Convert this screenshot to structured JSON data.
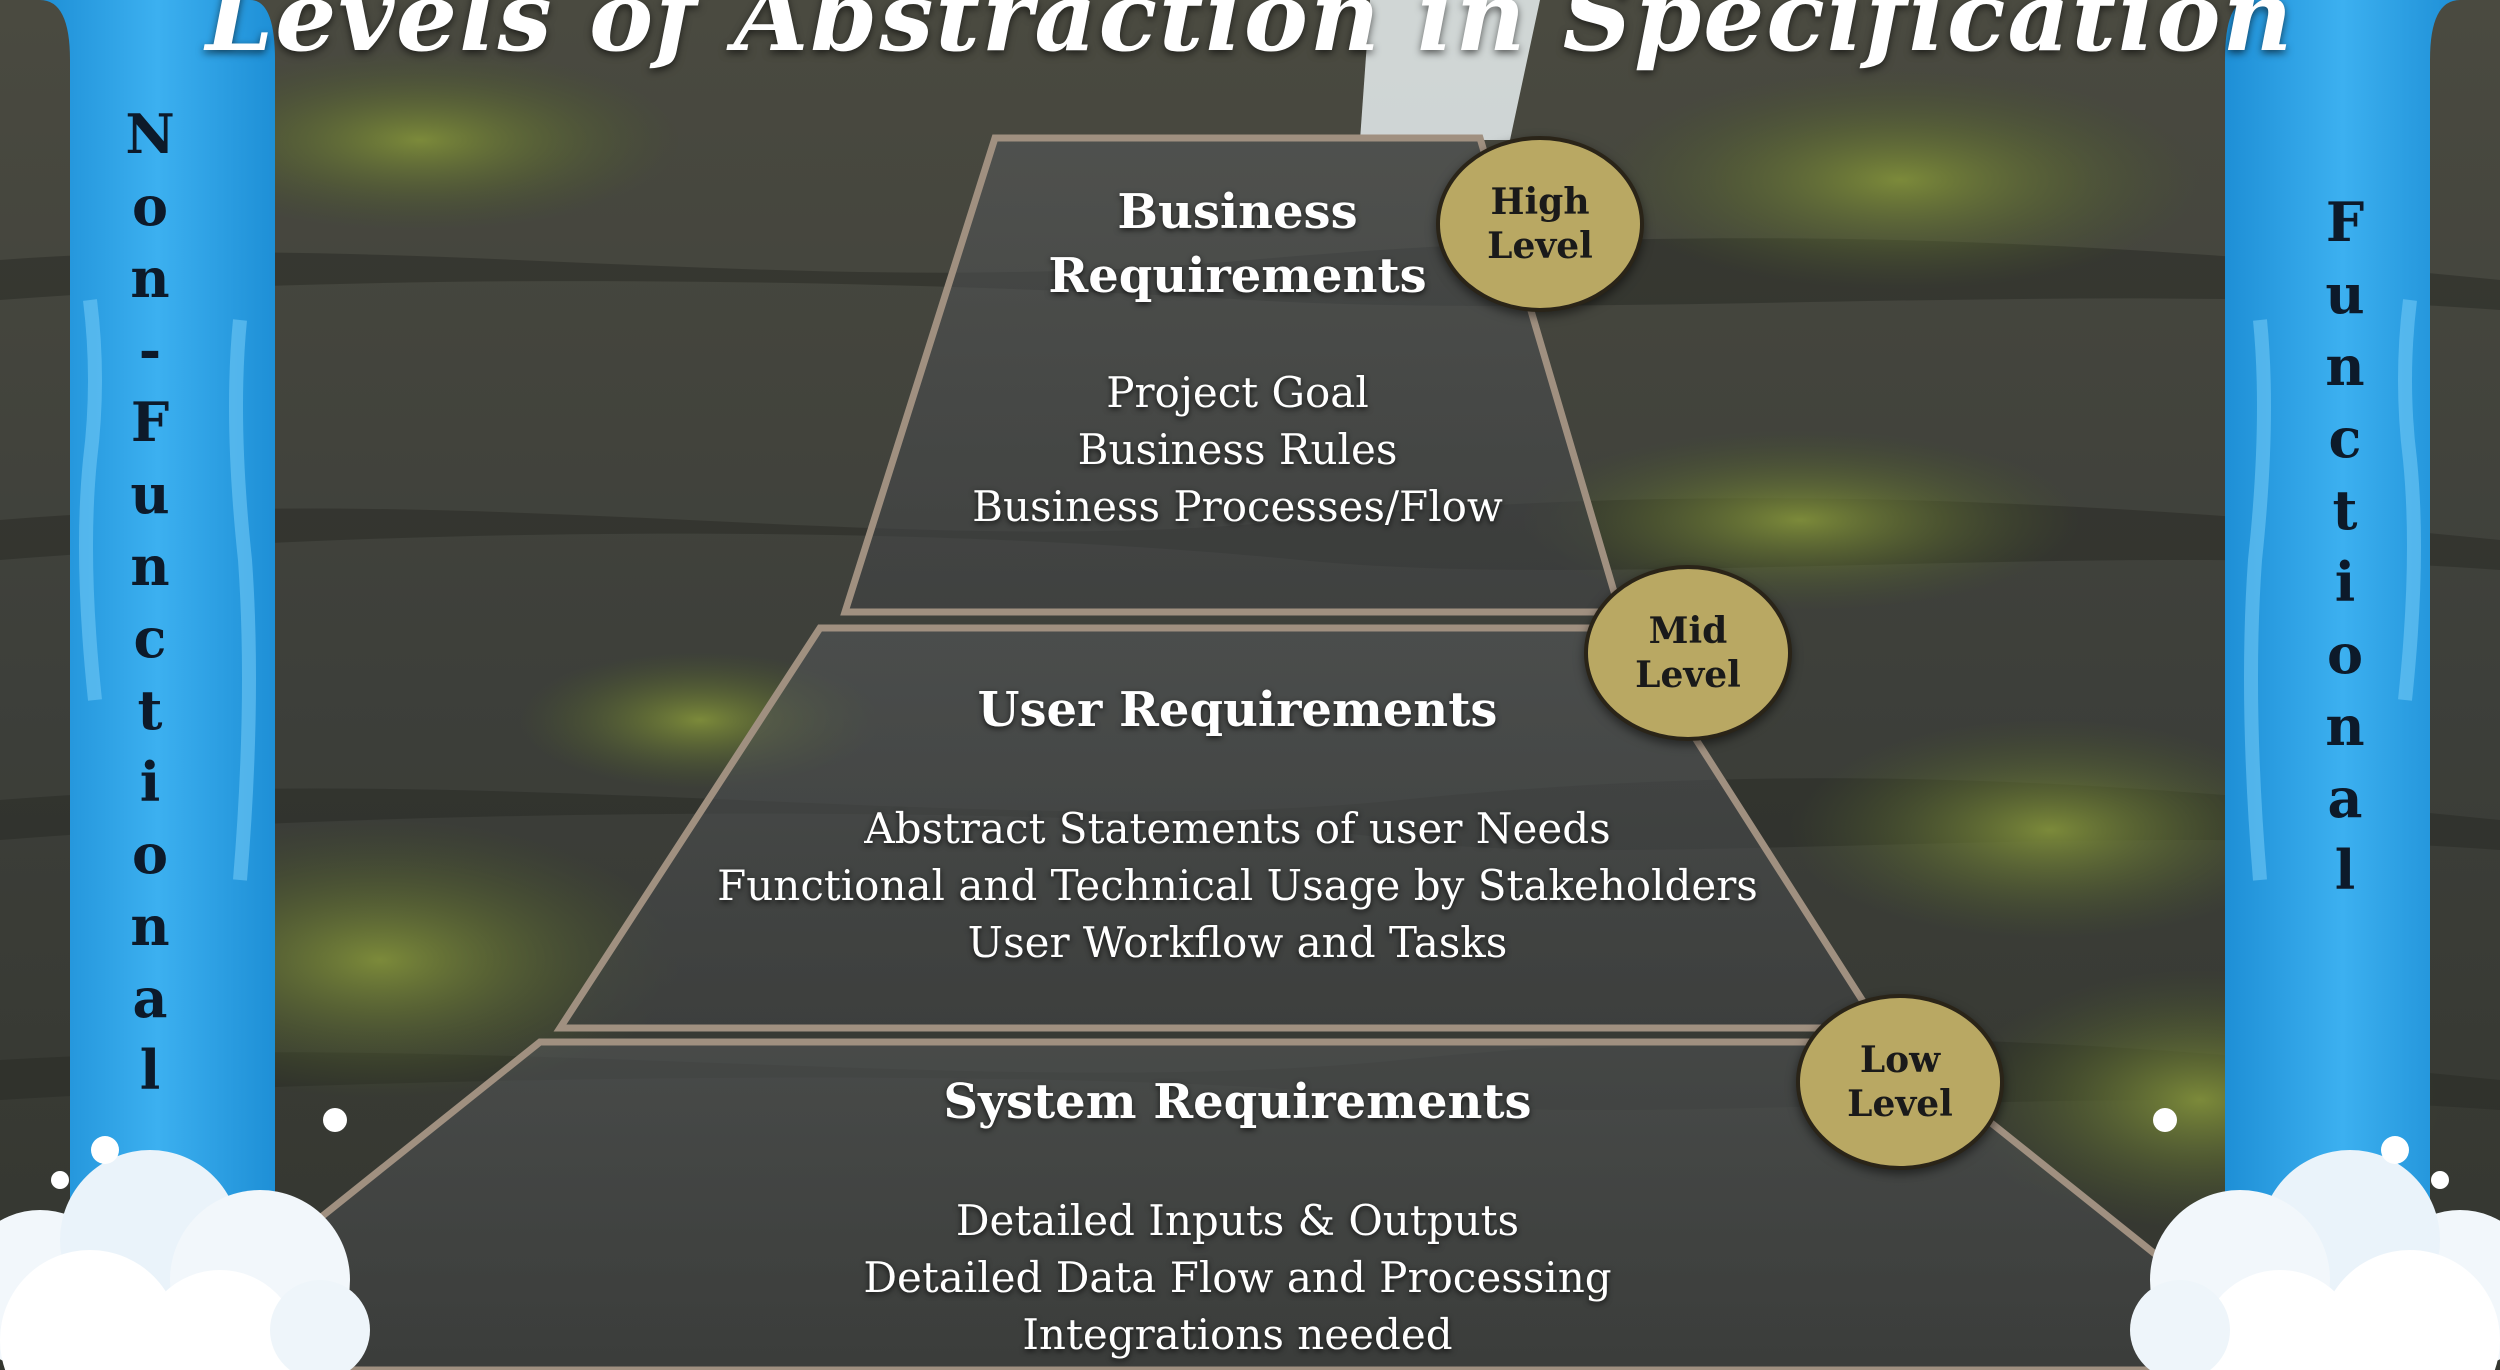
{
  "title": "Levels of Abstraction in Specification",
  "side_labels": {
    "left": "Non-Functional",
    "right": "Functional"
  },
  "tiers": [
    {
      "title_lines": [
        "Business",
        "Requirements"
      ],
      "level": "High\nLevel",
      "items": [
        "Project Goal",
        "Business Rules",
        "Business Processes/Flow"
      ]
    },
    {
      "title_lines": [
        "User Requirements"
      ],
      "level": "Mid\nLevel",
      "items": [
        "Abstract Statements of user Needs",
        "Functional and Technical Usage by Stakeholders",
        "User Workflow and Tasks"
      ]
    },
    {
      "title_lines": [
        "System Requirements"
      ],
      "level": "Low\nLevel",
      "items": [
        "Detailed Inputs & Outputs",
        "Detailed Data Flow and Processing",
        "Integrations needed"
      ]
    }
  ],
  "colors": {
    "badge": "#b9a863",
    "banner": "#2fa6ea",
    "frame": "#a09080"
  }
}
